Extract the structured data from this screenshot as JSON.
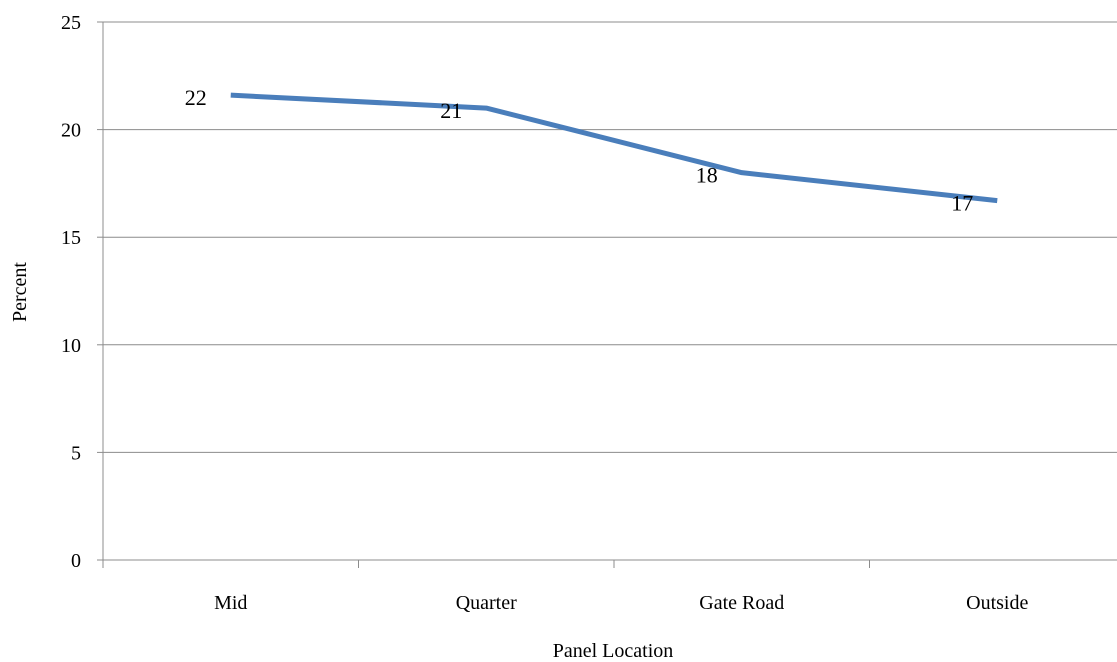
{
  "chart_data": {
    "type": "line",
    "categories": [
      "Mid",
      "Quarter",
      "Gate Road",
      "Outside"
    ],
    "series": [
      {
        "values": [
          21.6,
          21.0,
          18.0,
          16.7
        ],
        "data_labels": [
          "22",
          "21",
          "18",
          "17"
        ],
        "color": "#4a7ebb"
      }
    ],
    "xlabel": "Panel Location",
    "ylabel": "Percent",
    "ylim": [
      0,
      25
    ],
    "yticks": [
      "0",
      "5",
      "10",
      "15",
      "20",
      "25"
    ],
    "grid": "horizontal major gridlines on",
    "legend": "none"
  }
}
